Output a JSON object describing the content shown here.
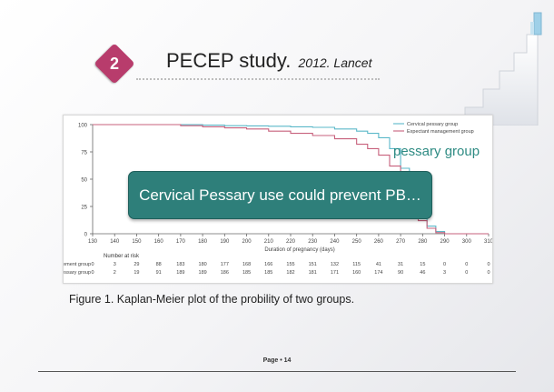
{
  "slide": {
    "badge": "2",
    "title": "PECEP study.",
    "subtitle": "2012. Lancet",
    "callout": "Cervical Pessary use could prevent PB…",
    "annotation": "pessary group",
    "caption": "Figure 1. Kaplan-Meier plot of the probility of  two groups.",
    "page_number": "Page • 14"
  },
  "colors": {
    "badge": "#b83c6c",
    "callout": "#2e7f7a",
    "pessary": "#5bb8c9",
    "expectant": "#c7607c"
  },
  "chart_data": {
    "type": "line",
    "xlabel": "Duration of pregnancy (days)",
    "ylabel": "",
    "xlim": [
      130,
      310
    ],
    "ylim": [
      0,
      100
    ],
    "x_ticks": [
      130,
      140,
      150,
      160,
      170,
      180,
      190,
      200,
      210,
      220,
      230,
      240,
      250,
      260,
      270,
      280,
      290,
      300,
      310
    ],
    "y_ticks": [
      0,
      25,
      50,
      75,
      100
    ],
    "legend": {
      "placement": "top-right"
    },
    "series": [
      {
        "name": "Cervical pessary group",
        "color": "#5bb8c9",
        "x": [
          130,
          170,
          180,
          190,
          200,
          210,
          220,
          230,
          240,
          250,
          255,
          260,
          265,
          270,
          274,
          278,
          282,
          286,
          290,
          310
        ],
        "y": [
          100,
          100,
          99.5,
          99,
          98.8,
          98.5,
          98,
          97.5,
          96,
          94,
          92,
          88,
          78,
          60,
          38,
          16,
          7,
          2,
          0,
          0
        ]
      },
      {
        "name": "Expectant management group",
        "color": "#c7607c",
        "x": [
          130,
          160,
          170,
          180,
          190,
          200,
          210,
          220,
          230,
          240,
          250,
          255,
          260,
          265,
          270,
          274,
          278,
          282,
          286,
          290,
          310
        ],
        "y": [
          100,
          100,
          99,
          98,
          97,
          96,
          94,
          92,
          90,
          87,
          82,
          78,
          72,
          62,
          45,
          28,
          12,
          5,
          1,
          0,
          0
        ]
      }
    ],
    "risk_table": {
      "header": "Number at risk",
      "rows": [
        {
          "label": "Expectant management group",
          "values": [
            "0",
            "3",
            "29",
            "88",
            "183",
            "180",
            "177",
            "168",
            "166",
            "155",
            "151",
            "132",
            "115",
            "41",
            "31",
            "15",
            "0",
            "0",
            "0"
          ]
        },
        {
          "label": "Cervical pessary group",
          "values": [
            "0",
            "2",
            "19",
            "91",
            "189",
            "189",
            "186",
            "185",
            "185",
            "182",
            "181",
            "171",
            "160",
            "174",
            "90",
            "46",
            "3",
            "0",
            "0"
          ]
        }
      ]
    }
  }
}
